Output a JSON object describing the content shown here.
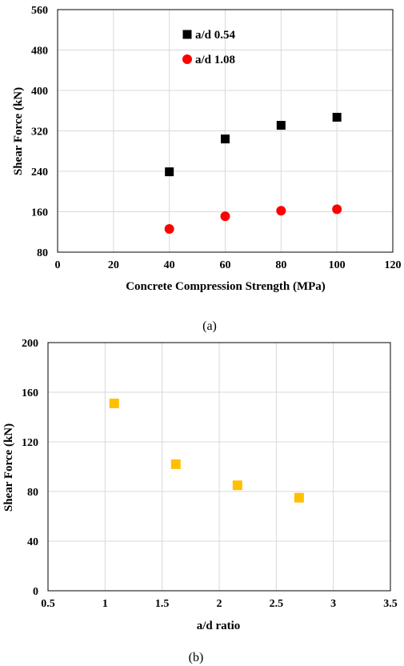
{
  "chart_data": [
    {
      "type": "scatter",
      "caption": "(a)",
      "xlabel": "Concrete Compression Strength (MPa)",
      "ylabel": "Shear Force (kN)",
      "xlim": [
        0,
        120
      ],
      "ylim": [
        80,
        560
      ],
      "xticks": [
        0,
        20,
        40,
        60,
        80,
        100,
        120
      ],
      "yticks": [
        80,
        160,
        240,
        320,
        400,
        480,
        560
      ],
      "grid": true,
      "legend_position": "top-center",
      "series": [
        {
          "name": "a/d 0.54",
          "marker": "square",
          "color": "#000000",
          "x": [
            40,
            60,
            80,
            100
          ],
          "y": [
            239,
            304,
            331,
            347
          ]
        },
        {
          "name": "a/d 1.08",
          "marker": "circle",
          "color": "#ff0000",
          "x": [
            40,
            60,
            80,
            100
          ],
          "y": [
            126,
            151,
            162,
            165
          ]
        }
      ]
    },
    {
      "type": "scatter",
      "caption": "(b)",
      "xlabel": "a/d ratio",
      "ylabel": "Shear Force (kN)",
      "xlim": [
        0.5,
        3.5
      ],
      "ylim": [
        0,
        200
      ],
      "xticks": [
        "0.5",
        "1",
        "1.5",
        "2",
        "2.5",
        "3",
        "3.5"
      ],
      "yticks": [
        0,
        40,
        80,
        120,
        160,
        200
      ],
      "grid": true,
      "series": [
        {
          "marker": "square",
          "color": "#ffc000",
          "x": [
            1.08,
            1.62,
            2.16,
            2.7
          ],
          "y": [
            151,
            102,
            85,
            75
          ]
        }
      ]
    }
  ]
}
